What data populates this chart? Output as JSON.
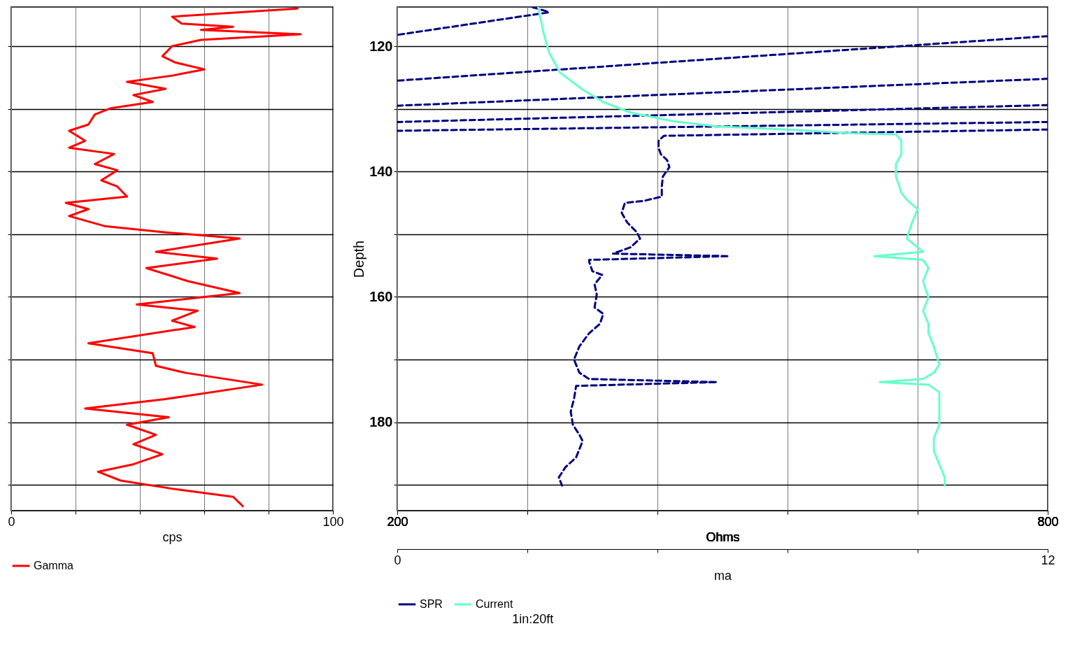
{
  "chart_data": [
    {
      "type": "line",
      "orientation": "horizontal",
      "xlabel": "cps",
      "xlim": [
        0,
        100
      ],
      "xticks": [
        0,
        {
          "value": 20,
          "label": null
        },
        {
          "value": 40,
          "label": null
        },
        {
          "value": 60,
          "label": null
        },
        {
          "value": 80,
          "label": null
        },
        100
      ],
      "ylim": [
        194.1,
        113.75
      ],
      "yticks": [
        120,
        {
          "value": 130,
          "label": null
        },
        140,
        {
          "value": 150,
          "label": null
        },
        160,
        {
          "value": 170,
          "label": null
        },
        180,
        {
          "value": 190,
          "label": null
        }
      ],
      "tick_labels": "x",
      "grid": true,
      "legend": "bottom",
      "series": [
        {
          "name": "Gamma",
          "color": "#ff0000",
          "line_style": "solid",
          "x": [
            114.0,
            115.3,
            116.4,
            116.9,
            117.4,
            118.1,
            119.0,
            120.0,
            121.6,
            122.6,
            123.7,
            124.7,
            125.7,
            126.8,
            127.8,
            128.9,
            129.9,
            130.9,
            132.5,
            133.5,
            135.1,
            136.2,
            137.2,
            138.8,
            139.8,
            141.4,
            142.4,
            144.0,
            145.0,
            146.0,
            147.1,
            148.7,
            149.7,
            150.7,
            152.8,
            153.9,
            155.4,
            157.5,
            159.4,
            161.2,
            162.2,
            163.8,
            164.8,
            167.4,
            169.0,
            171.0,
            172.1,
            174.0,
            176.3,
            177.8,
            179.2,
            180.4,
            182.0,
            183.5,
            185.1,
            186.7,
            187.9,
            189.3,
            190.6,
            191.9,
            193.4
          ],
          "values": [
            89,
            50,
            53,
            69,
            59,
            90,
            59,
            50,
            47,
            51,
            60,
            50,
            36,
            48,
            38,
            44,
            31,
            26,
            24,
            18,
            23,
            18,
            32,
            26,
            33,
            28,
            33,
            36,
            17,
            24,
            18,
            29,
            48,
            71,
            45,
            64,
            42,
            55,
            71,
            39,
            58,
            50,
            57,
            24,
            44,
            45,
            54,
            78,
            48,
            23,
            49,
            36,
            45,
            38,
            47,
            38,
            27,
            34,
            50,
            69,
            72
          ]
        }
      ]
    },
    {
      "type": "line",
      "orientation": "horizontal",
      "xlabel": "Ohms",
      "xlim": [
        200,
        800
      ],
      "xticks": [
        200,
        {
          "value": 320,
          "label": null
        },
        {
          "value": 440,
          "label": null
        },
        {
          "value": 560,
          "label": null
        },
        {
          "value": 680,
          "label": null
        },
        800
      ],
      "x2label": "ma",
      "x2lim": [
        0,
        12
      ],
      "x2ticks": [
        0,
        {
          "value": 2.4,
          "label": null
        },
        {
          "value": 4.8,
          "label": null
        },
        {
          "value": 7.2,
          "label": null
        },
        {
          "value": 9.6,
          "label": null
        },
        12
      ],
      "ylabel": "Depth",
      "ylim": [
        194.1,
        113.75
      ],
      "yticks": [
        120,
        {
          "value": 130,
          "label": null
        },
        140,
        {
          "value": 150,
          "label": null
        },
        160,
        {
          "value": 170,
          "label": null
        },
        180,
        {
          "value": 190,
          "label": null
        }
      ],
      "grid": true,
      "legend": "bottom",
      "annotations": [
        "1in:20ft"
      ],
      "series": [
        {
          "color": "#000080",
          "line_style": "dashed",
          "x": [
            113.8,
            114.3,
            114.6,
            118.2
          ],
          "values": [
            325,
            335,
            340,
            200
          ]
        },
        {
          "color": "#000080",
          "line_style": "dashed",
          "x": [
            118.4,
            125.5
          ],
          "values": [
            800,
            200
          ]
        },
        {
          "color": "#000080",
          "line_style": "dashed",
          "x": [
            125.2,
            129.5
          ],
          "values": [
            800,
            200
          ]
        },
        {
          "color": "#000080",
          "line_style": "dashed",
          "x": [
            129.4,
            132.1
          ],
          "values": [
            800,
            200
          ]
        },
        {
          "color": "#000080",
          "line_style": "dashed",
          "x": [
            132.1,
            133.5
          ],
          "values": [
            800,
            200
          ]
        },
        {
          "name": "SPR",
          "color": "#000080",
          "line_style": "dashed",
          "x": [
            133.3,
            134.3,
            135.1,
            136.2,
            137.2,
            138.2,
            139.3,
            140.8,
            142.4,
            144.0,
            144.7,
            145.0,
            146.6,
            148.1,
            149.7,
            150.7,
            152.1,
            153.1,
            153.5,
            154.1,
            154.4,
            155.9,
            156.5,
            158.0,
            159.6,
            161.7,
            162.7,
            164.3,
            165.8,
            167.9,
            170.0,
            172.1,
            173.1,
            173.6,
            174.2,
            176.3,
            178.3,
            180.4,
            182.0,
            183.0,
            185.6,
            187.2,
            188.8,
            190.1
          ],
          "values": [
            800,
            446,
            441,
            441,
            443,
            449,
            451,
            445,
            444,
            444,
            427,
            410,
            407,
            412,
            421,
            424,
            415,
            399,
            506,
            377,
            377,
            380,
            389,
            382,
            384,
            382,
            390,
            387,
            377,
            368,
            363,
            368,
            377,
            495,
            365,
            363,
            360,
            362,
            368,
            371,
            365,
            355,
            349,
            352
          ]
        },
        {
          "name": "Current",
          "color": "#66ffcc",
          "line_style": "solid",
          "axis": "x2",
          "x": [
            113.8,
            117.9,
            121.0,
            124.2,
            126.8,
            128.9,
            130.6,
            132.0,
            132.8,
            133.3,
            133.9,
            134.1,
            135.1,
            137.2,
            138.8,
            140.8,
            143.4,
            144.5,
            146.0,
            148.1,
            150.7,
            152.8,
            153.5,
            154.1,
            155.4,
            157.5,
            160.1,
            162.2,
            164.3,
            165.8,
            167.9,
            170.8,
            172.1,
            173.1,
            173.6,
            174.0,
            175.2,
            178.3,
            180.4,
            182.5,
            184.6,
            186.7,
            188.8,
            190.1
          ],
          "values": [
            2.6,
            2.7,
            2.8,
            3.0,
            3.4,
            3.8,
            4.3,
            5.1,
            5.9,
            7.2,
            8.4,
            9.2,
            9.3,
            9.3,
            9.2,
            9.2,
            9.3,
            9.4,
            9.6,
            9.5,
            9.4,
            9.7,
            8.8,
            9.7,
            9.8,
            9.7,
            9.8,
            9.7,
            9.8,
            9.8,
            9.9,
            10.0,
            9.9,
            9.7,
            8.9,
            9.8,
            10.0,
            10.0,
            10.0,
            9.9,
            9.9,
            10.0,
            10.1,
            10.1
          ]
        }
      ]
    }
  ]
}
